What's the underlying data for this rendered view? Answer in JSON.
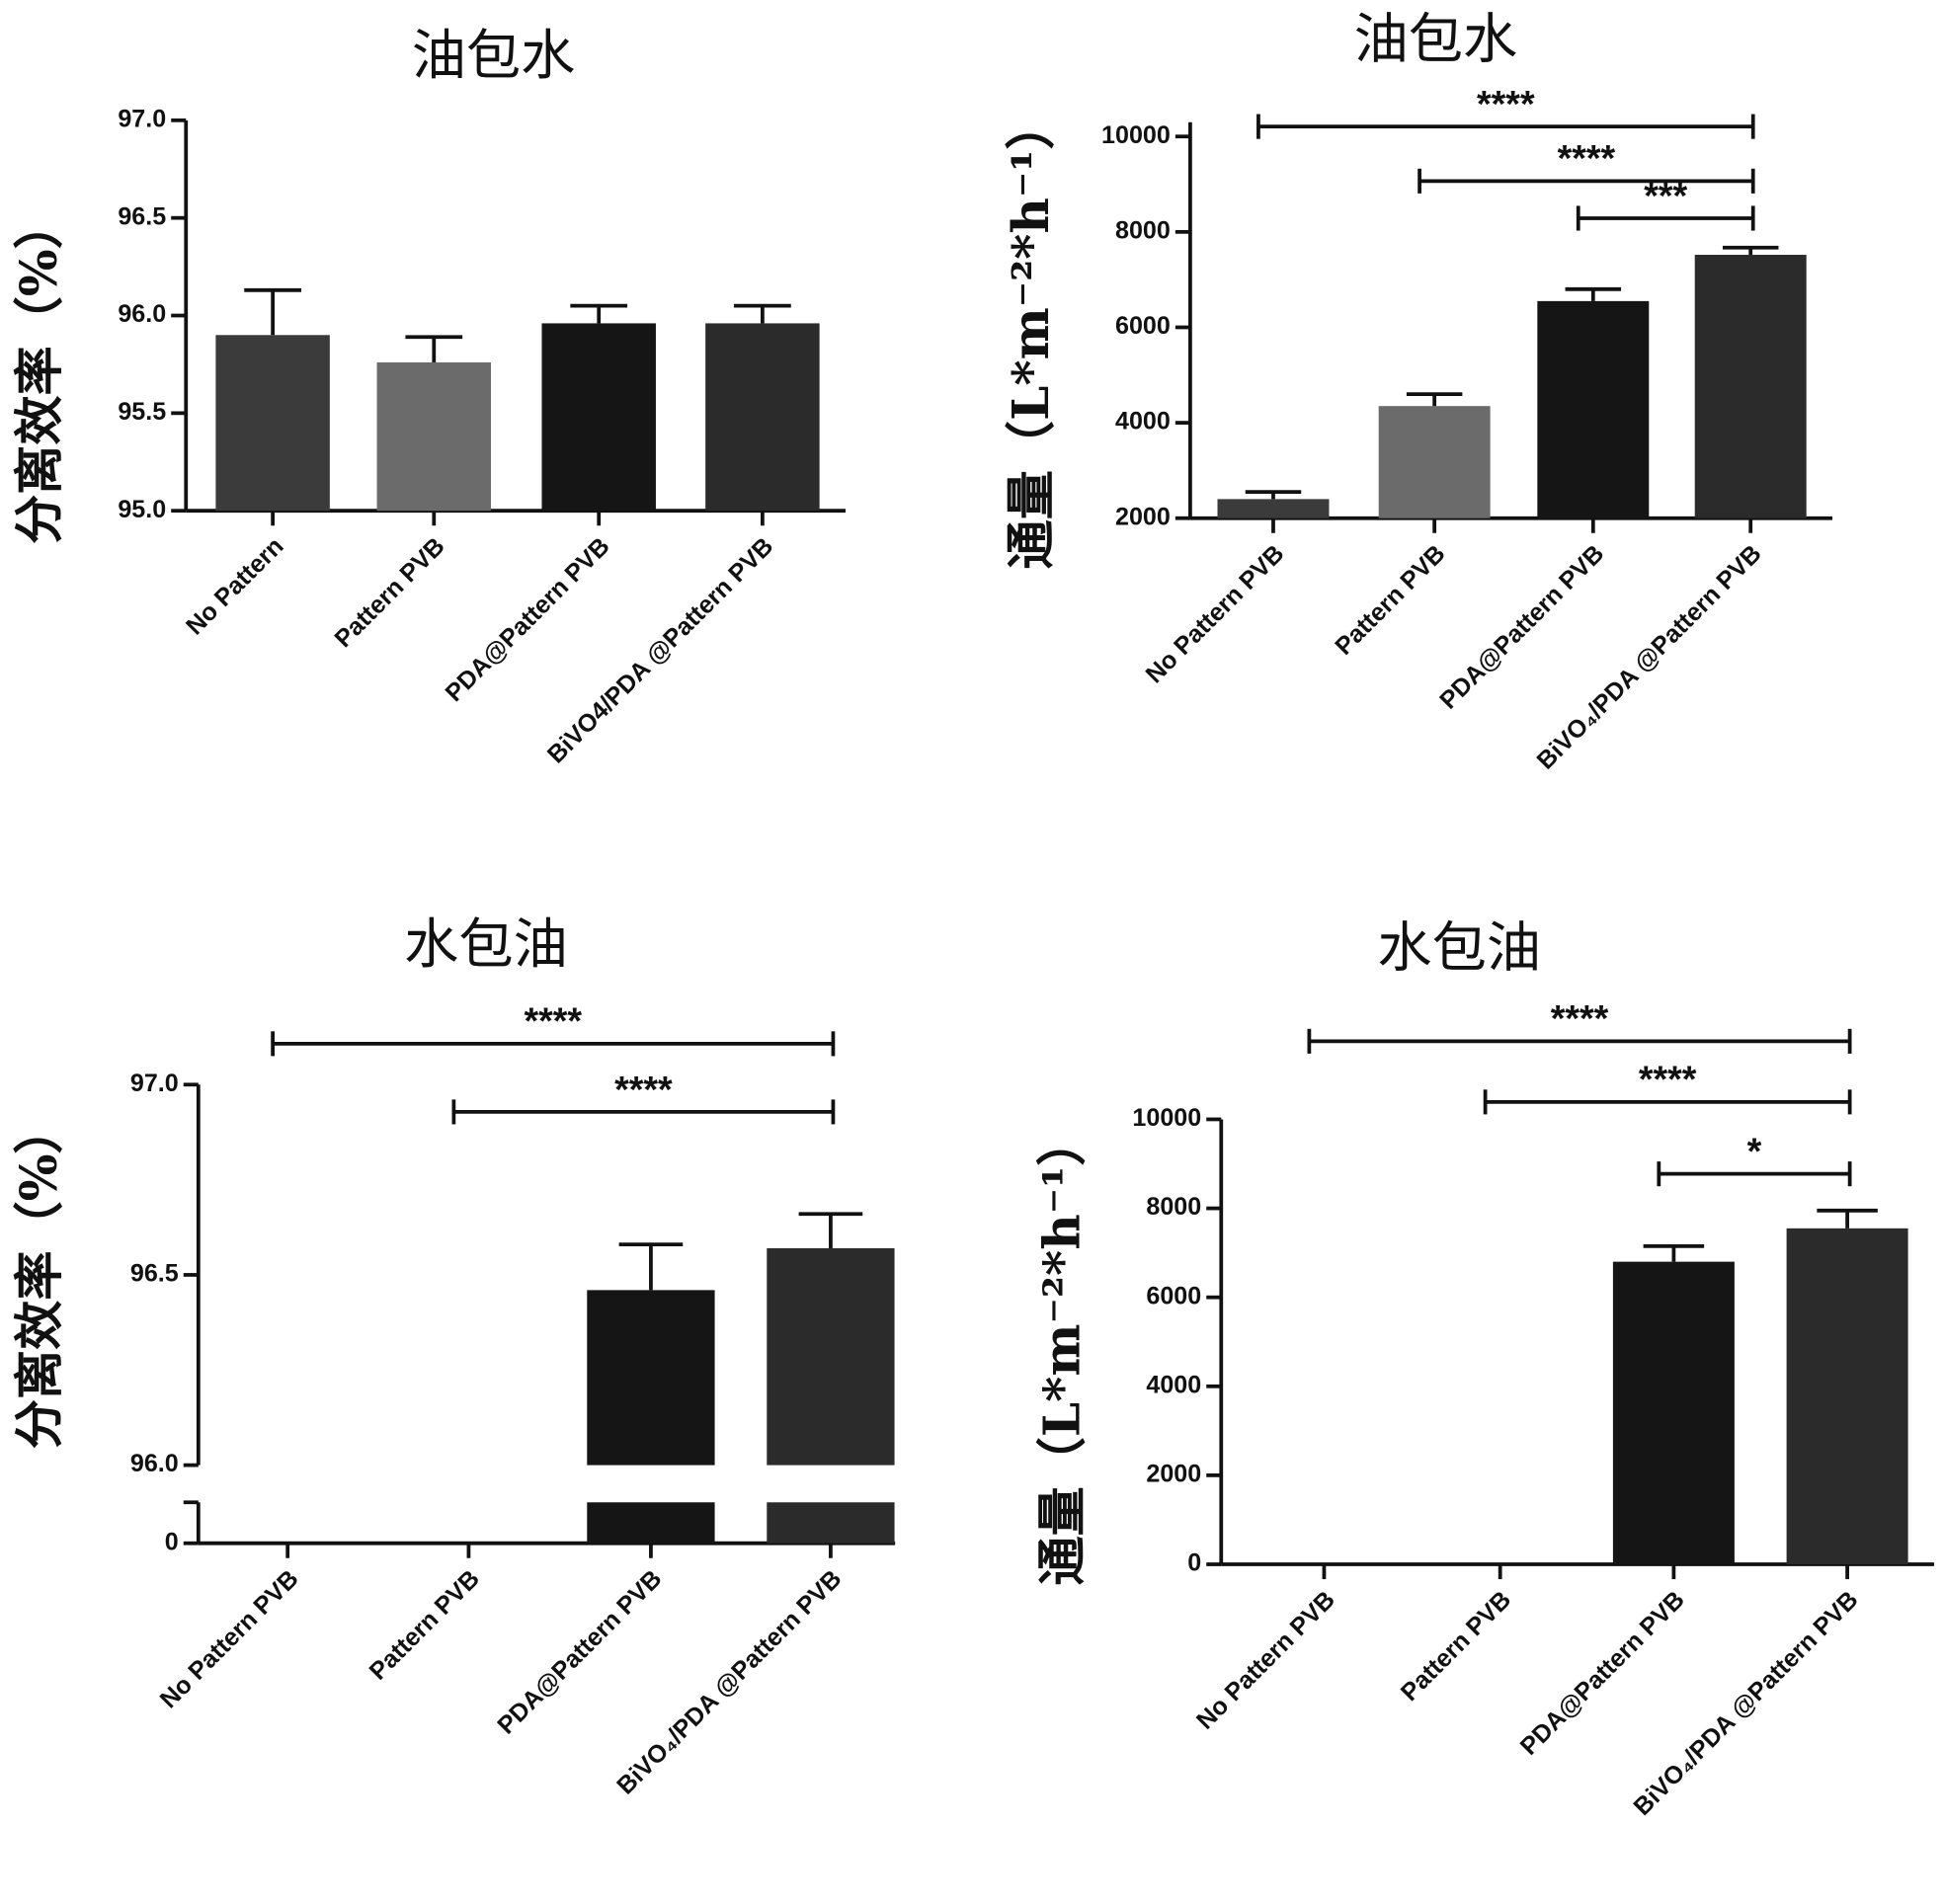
{
  "chart_data": [
    {
      "type": "bar",
      "title": "油包水",
      "ylabel": "分离效率（%）",
      "categories": [
        "No Pattern",
        "Pattern PVB",
        "PDA@Pattern PVB",
        "BiVO4/PDA @Pattern PVB"
      ],
      "values": [
        95.9,
        95.76,
        95.96,
        95.96
      ],
      "errors": [
        0.23,
        0.13,
        0.09,
        0.09
      ],
      "colors": [
        "#3b3b3b",
        "#6b6b6b",
        "#151515",
        "#2b2b2b"
      ],
      "ylim": [
        95,
        97
      ],
      "yticks": [
        {
          "value": 95,
          "label": "95.0"
        },
        95.5,
        {
          "value": 96,
          "label": "96.0"
        },
        96.5,
        {
          "value": 97,
          "label": "97.0"
        }
      ]
    },
    {
      "type": "bar",
      "title": "油包水",
      "ylabel": "通量（L*m⁻²*h⁻¹）",
      "categories": [
        "No Pattern PVB",
        "Pattern PVB",
        "PDA@Pattern PVB",
        "BiVO₄/PDA @Pattern PVB"
      ],
      "values": [
        2400,
        4350,
        6550,
        7520
      ],
      "errors": [
        150,
        250,
        250,
        150
      ],
      "colors": [
        "#3b3b3b",
        "#6b6b6b",
        "#151515",
        "#2b2b2b"
      ],
      "ylim": [
        2000,
        10300
      ],
      "yticks": [
        2000,
        4000,
        6000,
        8000,
        10000
      ],
      "annotations": [
        {
          "text": "****",
          "from": 0,
          "to": 3
        },
        {
          "text": "****",
          "from": 1,
          "to": 3
        },
        {
          "text": "***",
          "from": 2,
          "to": 3
        }
      ]
    },
    {
      "type": "bar",
      "title": "水包油",
      "ylabel": "分离效率（%）",
      "categories": [
        "No Pattern PVB",
        "Pattern PVB",
        "PDA@Pattern PVB",
        "BiVO₄/PDA @Pattern PVB"
      ],
      "values": [
        0,
        0,
        96.46,
        96.57
      ],
      "errors": [
        null,
        null,
        0.12,
        0.09
      ],
      "colors": [
        "#3b3b3b",
        "#6b6b6b",
        "#151515",
        "#2b2b2b"
      ],
      "ylim": [
        0,
        97
      ],
      "axis_break": 96,
      "yticks": [
        0,
        {
          "value": 96,
          "label": "96.0"
        },
        96.5,
        {
          "value": 97,
          "label": "97.0"
        }
      ],
      "annotations": [
        {
          "text": "****",
          "from": 0,
          "to": 3
        },
        {
          "text": "****",
          "from": 1,
          "to": 3
        }
      ]
    },
    {
      "type": "bar",
      "title": "水包油",
      "ylabel": "通量（L*m⁻²*h⁻¹）",
      "categories": [
        "No Pattern PVB",
        "Pattern PVB",
        "PDA@Pattern PVB",
        "BiVO₄/PDA @Pattern PVB"
      ],
      "values": [
        0,
        0,
        6800,
        7550
      ],
      "errors": [
        null,
        null,
        350,
        400
      ],
      "colors": [
        "#3b3b3b",
        "#6b6b6b",
        "#151515",
        "#2b2b2b"
      ],
      "ylim": [
        0,
        10000
      ],
      "yticks": [
        0,
        2000,
        4000,
        6000,
        8000,
        10000
      ],
      "annotations": [
        {
          "text": "****",
          "from": 0,
          "to": 3
        },
        {
          "text": "****",
          "from": 1,
          "to": 3
        },
        {
          "text": "*",
          "from": 2,
          "to": 3
        }
      ]
    }
  ]
}
